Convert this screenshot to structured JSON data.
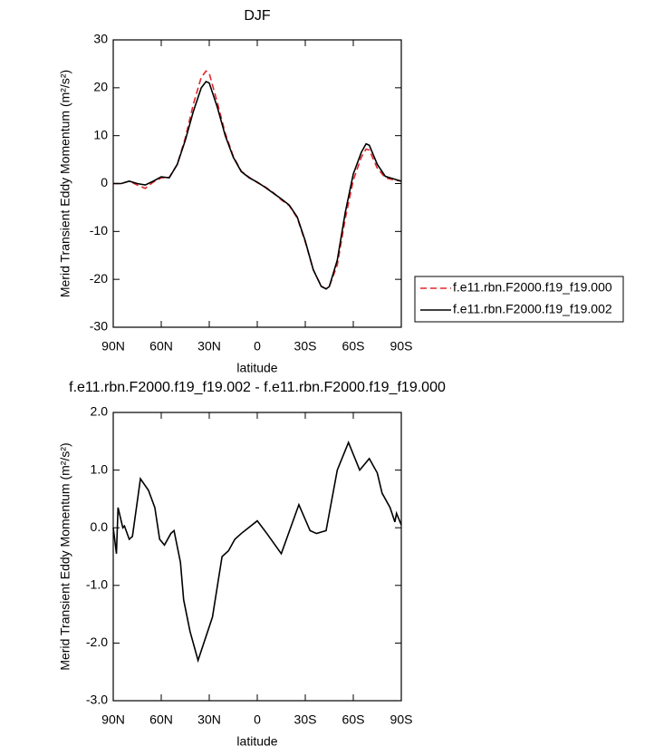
{
  "chart_data": [
    {
      "type": "line",
      "title": "DJF",
      "xlabel": "latitude",
      "ylabel": "Merid Transient Eddy Momentum (m²/s²)",
      "x": [
        90,
        85,
        80,
        75,
        70,
        65,
        60,
        55,
        50,
        45,
        40,
        35,
        32,
        30,
        25,
        20,
        15,
        10,
        5,
        0,
        -5,
        -10,
        -15,
        -20,
        -25,
        -30,
        -35,
        -40,
        -43,
        -45,
        -50,
        -55,
        -60,
        -65,
        -68,
        -70,
        -75,
        -80,
        -85,
        -90
      ],
      "series": [
        {
          "name": "f.e11.rbn.F2000.f19_f19.000",
          "color": "#e3262a",
          "line_style": "dashed",
          "values": [
            0,
            0,
            0.5,
            -0.3,
            -1,
            0.3,
            1.2,
            1.3,
            4,
            9.5,
            16.5,
            22.2,
            23.5,
            23,
            17,
            10.5,
            5.7,
            2.6,
            1.3,
            0.2,
            -0.7,
            -1.9,
            -3.4,
            -4.6,
            -7.2,
            -12.2,
            -18,
            -21.4,
            -22,
            -21.5,
            -17,
            -7.3,
            0.7,
            5.5,
            7.2,
            7,
            3.2,
            1.2,
            0.8,
            0.5
          ]
        },
        {
          "name": "f.e11.rbn.F2000.f19_f19.002",
          "color": "#000000",
          "line_style": "solid",
          "values": [
            0,
            0,
            0.5,
            0,
            -0.3,
            0.5,
            1.4,
            1.2,
            4,
            9,
            15,
            20,
            21.3,
            21,
            16,
            10,
            5.5,
            2.5,
            1.2,
            0.3,
            -0.8,
            -2,
            -3.2,
            -4.5,
            -7,
            -12,
            -18,
            -21.5,
            -22,
            -21.5,
            -16,
            -6,
            2,
            6.5,
            8.3,
            8,
            4,
            1.5,
            1,
            0.5
          ]
        }
      ],
      "xlim": [
        90,
        -90
      ],
      "xticks": [
        {
          "value": 90,
          "label": "90N"
        },
        {
          "value": 60,
          "label": "60N"
        },
        {
          "value": 30,
          "label": "30N"
        },
        0,
        {
          "value": -30,
          "label": "30S"
        },
        {
          "value": -60,
          "label": "60S"
        },
        {
          "value": -90,
          "label": "90S"
        }
      ],
      "ylim": [
        -30,
        30
      ],
      "yticks": [
        -30,
        -20,
        -10,
        0,
        10,
        20,
        30
      ],
      "legend": "right"
    },
    {
      "type": "line",
      "title": "f.e11.rbn.F2000.f19_f19.002 - f.e11.rbn.F2000.f19_f19.000",
      "xlabel": "latitude",
      "ylabel": "Merid Transient Eddy Momentum (m²/s²)",
      "x": [
        90,
        88,
        87,
        84,
        83,
        80,
        78,
        73,
        68,
        64,
        61,
        58,
        54,
        52,
        48,
        46,
        42,
        37,
        28,
        22,
        18,
        14,
        10,
        0,
        -6,
        -15,
        -26,
        -33,
        -37,
        -43,
        -50,
        -57,
        -64,
        -70,
        -75,
        -78,
        -83,
        -86,
        -87,
        -90
      ],
      "values": [
        0,
        -0.45,
        0.35,
        0,
        0.03,
        -0.2,
        -0.15,
        0.85,
        0.65,
        0.35,
        -0.2,
        -0.3,
        -0.1,
        -0.05,
        -0.6,
        -1.25,
        -1.8,
        -2.3,
        -1.55,
        -0.5,
        -0.4,
        -0.2,
        -0.1,
        0.12,
        -0.1,
        -0.45,
        0.4,
        -0.05,
        -0.1,
        -0.05,
        1.0,
        1.48,
        1.0,
        1.2,
        0.95,
        0.6,
        0.35,
        0.1,
        0.25,
        0.05
      ],
      "color": "#000000",
      "xlim": [
        90,
        -90
      ],
      "xticks": [
        {
          "value": 90,
          "label": "90N"
        },
        {
          "value": 60,
          "label": "60N"
        },
        {
          "value": 30,
          "label": "30N"
        },
        0,
        {
          "value": -30,
          "label": "30S"
        },
        {
          "value": -60,
          "label": "60S"
        },
        {
          "value": -90,
          "label": "90S"
        }
      ],
      "ylim": [
        -3,
        2
      ],
      "yticks": [
        {
          "value": -3,
          "label": "-3.0"
        },
        {
          "value": -2,
          "label": "-2.0"
        },
        {
          "value": -1,
          "label": "-1.0"
        },
        {
          "value": 0,
          "label": "0.0"
        },
        {
          "value": 1,
          "label": "1.0"
        },
        {
          "value": 2,
          "label": "2.0"
        }
      ]
    }
  ]
}
